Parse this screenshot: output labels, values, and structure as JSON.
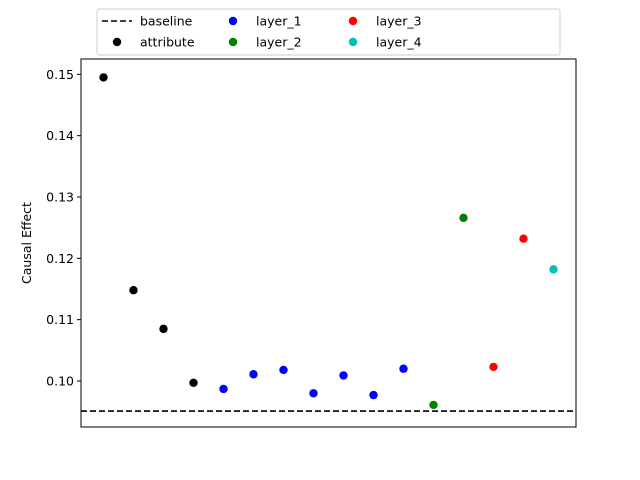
{
  "chart_data": {
    "type": "scatter",
    "title": "",
    "xlabel": "",
    "ylabel": "Causal Effect",
    "xlim": [
      -0.75,
      15.75
    ],
    "ylim": [
      0.0925,
      0.1525
    ],
    "yticks": [
      0.1,
      0.11,
      0.12,
      0.13,
      0.14,
      0.15
    ],
    "ytick_labels": [
      "0.10",
      "0.11",
      "0.12",
      "0.13",
      "0.14",
      "0.15"
    ],
    "xticks": [],
    "grid": false,
    "legend_placement": "top-center",
    "baseline": {
      "name": "baseline",
      "value": 0.0951,
      "color": "#000000",
      "style": "dashed"
    },
    "series": [
      {
        "name": "attribute",
        "color": "#000000",
        "x": [
          0,
          1,
          2,
          3
        ],
        "y": [
          0.1495,
          0.1148,
          0.1085,
          0.0997
        ]
      },
      {
        "name": "layer_1",
        "color": "#0000ff",
        "x": [
          4,
          5,
          6,
          7,
          8,
          9,
          10
        ],
        "y": [
          0.0987,
          0.1011,
          0.1018,
          0.098,
          0.1009,
          0.0977,
          0.102
        ]
      },
      {
        "name": "layer_2",
        "color": "#008000",
        "x": [
          11,
          12
        ],
        "y": [
          0.0961,
          0.1266
        ]
      },
      {
        "name": "layer_3",
        "color": "#ff0000",
        "x": [
          13,
          14
        ],
        "y": [
          0.1023,
          0.1232
        ]
      },
      {
        "name": "layer_4",
        "color": "#00bfbf",
        "x": [
          15
        ],
        "y": [
          0.1182
        ]
      }
    ]
  }
}
